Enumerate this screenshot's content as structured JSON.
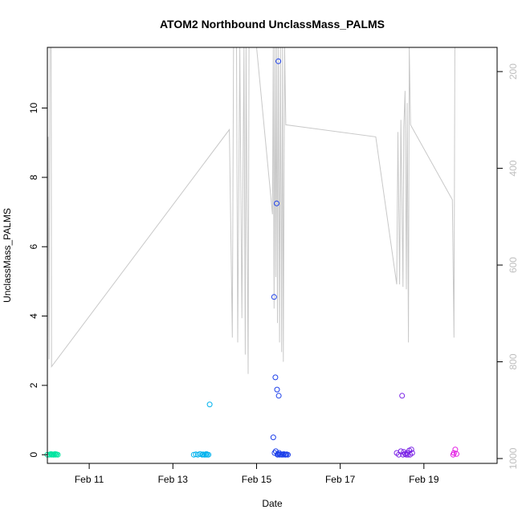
{
  "chart_data": {
    "type": "scatter",
    "title": "ATOM2 Northbound UnclassMass_PALMS",
    "xlabel": "Date",
    "ylabel": "UnclassMass_PALMS",
    "x_unit": "days (Feb)",
    "xlim": [
      10.0,
      20.75
    ],
    "ylim": [
      -0.25,
      11.75
    ],
    "y_ticks": [
      0,
      2,
      4,
      6,
      8,
      10
    ],
    "x_ticks": [
      11,
      13,
      15,
      17,
      19
    ],
    "x_tick_labels": [
      "Feb 11",
      "Feb 13",
      "Feb 15",
      "Feb 17",
      "Feb 19"
    ],
    "secondary_axis": {
      "side": "right",
      "reversed": true,
      "ticks": [
        200,
        400,
        600,
        800,
        1000
      ],
      "range": [
        1010,
        150
      ],
      "color": "#bebebe"
    },
    "grid": false,
    "legend": "none",
    "series": [
      {
        "color": "#00e5a0",
        "points": [
          [
            10.0,
            0.0
          ],
          [
            10.05,
            0.0
          ],
          [
            10.08,
            0.02
          ],
          [
            10.1,
            0.0
          ],
          [
            10.12,
            0.01
          ],
          [
            10.14,
            0.0
          ],
          [
            10.16,
            0.0
          ],
          [
            10.18,
            0.02
          ],
          [
            10.2,
            0.0
          ],
          [
            10.22,
            0.01
          ],
          [
            10.25,
            0.0
          ]
        ]
      },
      {
        "color": "#00b2ee",
        "points": [
          [
            13.5,
            0.0
          ],
          [
            13.55,
            0.01
          ],
          [
            13.6,
            0.0
          ],
          [
            13.65,
            0.02
          ],
          [
            13.7,
            0.0
          ],
          [
            13.72,
            0.01
          ],
          [
            13.75,
            0.0
          ],
          [
            13.78,
            0.0
          ],
          [
            13.8,
            0.02
          ],
          [
            13.82,
            0.0
          ],
          [
            13.85,
            0.0
          ],
          [
            13.88,
            1.45
          ]
        ]
      },
      {
        "color": "#1c3fea",
        "points": [
          [
            15.4,
            0.5
          ],
          [
            15.42,
            4.55
          ],
          [
            15.43,
            0.05
          ],
          [
            15.45,
            2.23
          ],
          [
            15.46,
            0.1
          ],
          [
            15.48,
            7.25
          ],
          [
            15.49,
            1.88
          ],
          [
            15.5,
            0.0
          ],
          [
            15.51,
            0.02
          ],
          [
            15.52,
            11.35
          ],
          [
            15.53,
            1.7
          ],
          [
            15.54,
            0.05
          ],
          [
            15.55,
            0.0
          ],
          [
            15.57,
            0.01
          ],
          [
            15.6,
            0.0
          ],
          [
            15.63,
            0.0
          ],
          [
            15.65,
            0.02
          ],
          [
            15.68,
            0.0
          ],
          [
            15.7,
            0.0
          ],
          [
            15.72,
            0.01
          ],
          [
            15.75,
            0.0
          ]
        ]
      },
      {
        "color": "#7a22e6",
        "points": [
          [
            18.35,
            0.05
          ],
          [
            18.4,
            0.0
          ],
          [
            18.45,
            0.1
          ],
          [
            18.48,
            1.7
          ],
          [
            18.5,
            0.0
          ],
          [
            18.52,
            0.08
          ],
          [
            18.55,
            0.02
          ],
          [
            18.58,
            0.0
          ],
          [
            18.6,
            0.05
          ],
          [
            18.62,
            0.0
          ],
          [
            18.65,
            0.12
          ],
          [
            18.67,
            0.0
          ],
          [
            18.7,
            0.15
          ],
          [
            18.72,
            0.05
          ]
        ]
      },
      {
        "color": "#e31ae3",
        "points": [
          [
            19.7,
            0.0
          ],
          [
            19.72,
            0.05
          ],
          [
            19.75,
            0.15
          ],
          [
            19.78,
            0.02
          ]
        ]
      }
    ],
    "altitude_line": {
      "color": "#c8c8c8",
      "points": [
        [
          10.0,
          755
        ],
        [
          10.02,
          335
        ],
        [
          10.04,
          795
        ],
        [
          10.06,
          150
        ],
        [
          10.09,
          150
        ],
        [
          10.1,
          810
        ],
        [
          14.35,
          320
        ],
        [
          14.42,
          750
        ],
        [
          14.45,
          150
        ],
        [
          14.52,
          150
        ],
        [
          14.55,
          760
        ],
        [
          14.6,
          150
        ],
        [
          14.65,
          710
        ],
        [
          14.7,
          150
        ],
        [
          14.73,
          785
        ],
        [
          14.75,
          150
        ],
        [
          14.8,
          825
        ],
        [
          14.82,
          150
        ],
        [
          15.0,
          150
        ],
        [
          15.38,
          495
        ],
        [
          15.4,
          150
        ],
        [
          15.42,
          690
        ],
        [
          15.44,
          150
        ],
        [
          15.46,
          625
        ],
        [
          15.48,
          150
        ],
        [
          15.5,
          720
        ],
        [
          15.52,
          150
        ],
        [
          15.55,
          760
        ],
        [
          15.57,
          150
        ],
        [
          15.6,
          780
        ],
        [
          15.62,
          150
        ],
        [
          15.64,
          800
        ],
        [
          15.67,
          150
        ],
        [
          15.7,
          310
        ],
        [
          17.85,
          335
        ],
        [
          18.35,
          640
        ],
        [
          18.38,
          325
        ],
        [
          18.42,
          640
        ],
        [
          18.45,
          300
        ],
        [
          18.5,
          645
        ],
        [
          18.52,
          315
        ],
        [
          18.55,
          240
        ],
        [
          18.58,
          650
        ],
        [
          18.6,
          265
        ],
        [
          18.63,
          760
        ],
        [
          18.65,
          150
        ],
        [
          18.68,
          310
        ],
        [
          19.68,
          465
        ],
        [
          19.72,
          750
        ],
        [
          19.74,
          150
        ]
      ]
    }
  }
}
